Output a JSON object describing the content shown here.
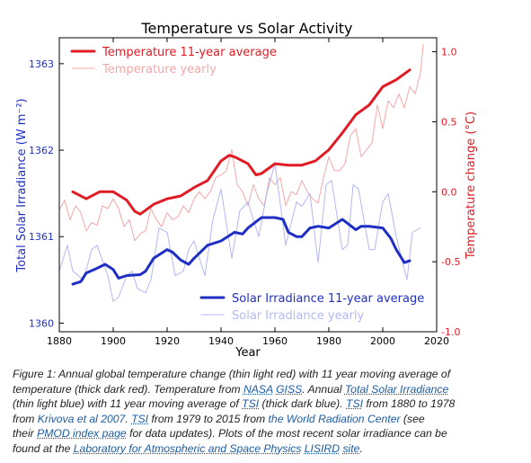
{
  "chart_data": {
    "type": "line",
    "title": "Temperature vs Solar Activity",
    "xlabel": "Year",
    "ylabel_left": "Total Solar Irradiance (W m⁻²)",
    "ylabel_right": "Temperature change (°C)",
    "xlim": [
      1880,
      2020
    ],
    "ylim_left": [
      1359.9,
      1363.3
    ],
    "ylim_right": [
      -1.0,
      1.1
    ],
    "x_ticks": [
      1880,
      1900,
      1920,
      1940,
      1960,
      1980,
      2000,
      2020
    ],
    "y_left_ticks": [
      1360,
      1361,
      1362,
      1363
    ],
    "y_right_ticks": [
      "-1.0",
      "-0.5",
      "0.0",
      "0.5",
      "1.0"
    ],
    "legend_top": [
      {
        "name": "Temperature 11-year average",
        "color": "#e01b24",
        "width": 3
      },
      {
        "name": "Temperature yearly",
        "color": "#f4a7a7",
        "width": 1
      }
    ],
    "legend_bottom": [
      {
        "name": "Solar Irradiance 11-year average",
        "color": "#1f2fc4",
        "width": 3
      },
      {
        "name": "Solar Irradiance yearly",
        "color": "#b3b8f2",
        "width": 1
      }
    ],
    "series": [
      {
        "name": "Temperature 11-year average",
        "axis": "right",
        "color": "#e01b24",
        "width": 3,
        "x": [
          1885,
          1890,
          1895,
          1900,
          1905,
          1908,
          1910,
          1915,
          1920,
          1925,
          1930,
          1935,
          1940,
          1943,
          1945,
          1950,
          1953,
          1955,
          1960,
          1965,
          1970,
          1975,
          1980,
          1985,
          1990,
          1995,
          2000,
          2005,
          2010
        ],
        "y": [
          0.0,
          -0.05,
          0.0,
          0.0,
          -0.06,
          -0.14,
          -0.16,
          -0.09,
          -0.05,
          -0.03,
          0.03,
          0.08,
          0.22,
          0.26,
          0.25,
          0.2,
          0.12,
          0.13,
          0.2,
          0.19,
          0.19,
          0.22,
          0.3,
          0.42,
          0.55,
          0.62,
          0.75,
          0.8,
          0.87
        ]
      },
      {
        "name": "Temperature yearly",
        "axis": "right",
        "color": "#f4a7a7",
        "width": 1,
        "x": [
          1880,
          1882,
          1884,
          1886,
          1888,
          1890,
          1892,
          1894,
          1896,
          1898,
          1900,
          1902,
          1904,
          1906,
          1908,
          1910,
          1912,
          1914,
          1916,
          1918,
          1920,
          1922,
          1924,
          1926,
          1928,
          1930,
          1932,
          1934,
          1936,
          1938,
          1940,
          1942,
          1944,
          1946,
          1948,
          1950,
          1952,
          1954,
          1956,
          1958,
          1960,
          1962,
          1964,
          1966,
          1968,
          1970,
          1972,
          1974,
          1976,
          1978,
          1980,
          1982,
          1984,
          1986,
          1988,
          1990,
          1992,
          1994,
          1996,
          1998,
          2000,
          2002,
          2004,
          2006,
          2008,
          2010,
          2012,
          2014,
          2015
        ],
        "y": [
          -0.13,
          -0.06,
          -0.2,
          -0.1,
          -0.15,
          -0.28,
          -0.22,
          -0.24,
          -0.1,
          -0.12,
          -0.05,
          -0.12,
          -0.25,
          -0.2,
          -0.35,
          -0.3,
          -0.28,
          -0.12,
          -0.2,
          -0.25,
          -0.15,
          -0.2,
          -0.18,
          -0.1,
          -0.15,
          -0.05,
          0.0,
          -0.05,
          0.0,
          0.1,
          0.12,
          0.15,
          0.3,
          0.05,
          0.0,
          -0.1,
          0.05,
          -0.05,
          -0.1,
          0.1,
          0.05,
          0.1,
          -0.1,
          0.0,
          -0.02,
          0.08,
          0.0,
          -0.05,
          -0.08,
          0.1,
          0.25,
          0.15,
          0.15,
          0.2,
          0.4,
          0.45,
          0.25,
          0.3,
          0.35,
          0.62,
          0.45,
          0.65,
          0.6,
          0.7,
          0.6,
          0.75,
          0.7,
          0.85,
          1.05
        ]
      },
      {
        "name": "Solar Irradiance 11-year average",
        "axis": "left",
        "color": "#1f2fc4",
        "width": 3,
        "x": [
          1885,
          1888,
          1890,
          1893,
          1897,
          1900,
          1902,
          1905,
          1910,
          1912,
          1915,
          1920,
          1922,
          1925,
          1928,
          1930,
          1935,
          1940,
          1945,
          1948,
          1950,
          1955,
          1960,
          1963,
          1965,
          1968,
          1970,
          1973,
          1976,
          1980,
          1985,
          1990,
          1992,
          1995,
          2000,
          2003,
          2005,
          2008,
          2010
        ],
        "y": [
          1360.45,
          1360.48,
          1360.58,
          1360.62,
          1360.68,
          1360.62,
          1360.52,
          1360.55,
          1360.56,
          1360.6,
          1360.75,
          1360.85,
          1360.82,
          1360.73,
          1360.68,
          1360.75,
          1360.9,
          1360.95,
          1361.05,
          1361.03,
          1361.1,
          1361.22,
          1361.22,
          1361.2,
          1361.05,
          1361.0,
          1361.0,
          1361.1,
          1361.12,
          1361.1,
          1361.2,
          1361.08,
          1361.12,
          1361.12,
          1361.1,
          1360.98,
          1360.85,
          1360.7,
          1360.72
        ]
      },
      {
        "name": "Solar Irradiance yearly",
        "axis": "left",
        "color": "#b3b8f2",
        "width": 1,
        "x": [
          1880,
          1883,
          1885,
          1889,
          1892,
          1894,
          1898,
          1900,
          1902,
          1905,
          1907,
          1909,
          1912,
          1914,
          1917,
          1920,
          1923,
          1926,
          1928,
          1930,
          1934,
          1937,
          1940,
          1944,
          1947,
          1950,
          1954,
          1957,
          1960,
          1964,
          1968,
          1970,
          1973,
          1976,
          1979,
          1981,
          1985,
          1987,
          1989,
          1991,
          1995,
          1997,
          2000,
          2002,
          2005,
          2009,
          2011,
          2014
        ],
        "y": [
          1360.6,
          1360.9,
          1360.6,
          1360.5,
          1360.85,
          1360.9,
          1360.55,
          1360.25,
          1360.3,
          1360.55,
          1360.6,
          1360.4,
          1360.35,
          1360.5,
          1361.1,
          1361.05,
          1360.55,
          1360.6,
          1360.85,
          1360.95,
          1360.55,
          1361.2,
          1361.55,
          1360.75,
          1361.3,
          1361.4,
          1361.0,
          1361.5,
          1361.85,
          1360.9,
          1361.4,
          1361.35,
          1361.5,
          1360.7,
          1361.6,
          1361.65,
          1360.85,
          1360.9,
          1361.6,
          1361.55,
          1360.85,
          1360.85,
          1361.4,
          1361.5,
          1361.0,
          1360.5,
          1361.05,
          1361.1
        ]
      }
    ]
  },
  "caption": {
    "l1a": "Figure 1: Annual global temperature change (thin light red) with 11 year moving average of",
    "l2a": "temperature (thick dark red). Temperature from ",
    "l2b": "NASA",
    "l2c": " ",
    "l2d": "GISS",
    "l2e": ". Annual ",
    "l2f": "Total Solar Irradiance",
    "l3a": "(thin light blue) with 11 year moving average of ",
    "l3b": "TSI",
    "l3c": " (thick dark blue). ",
    "l3d": "TSI",
    "l3e": " from 1880 to 1978",
    "l4a": "from ",
    "l4b": "Krivova et al 2007",
    "l4c": ". ",
    "l4d": "TSI",
    "l4e": " from 1979 to 2015 from ",
    "l4f": "the World Radiation Center",
    "l4g": " (see",
    "l5a": "their ",
    "l5b": "PMOD index page",
    "l5c": " for data updates). Plots of the most recent solar irradiance can be",
    "l6a": "found at the ",
    "l6b": "Laboratory for Atmospheric and Space Physics",
    "l6c": " ",
    "l6d": "LISIRD",
    "l6e": " ",
    "l6f": "site",
    "l6g": "."
  }
}
